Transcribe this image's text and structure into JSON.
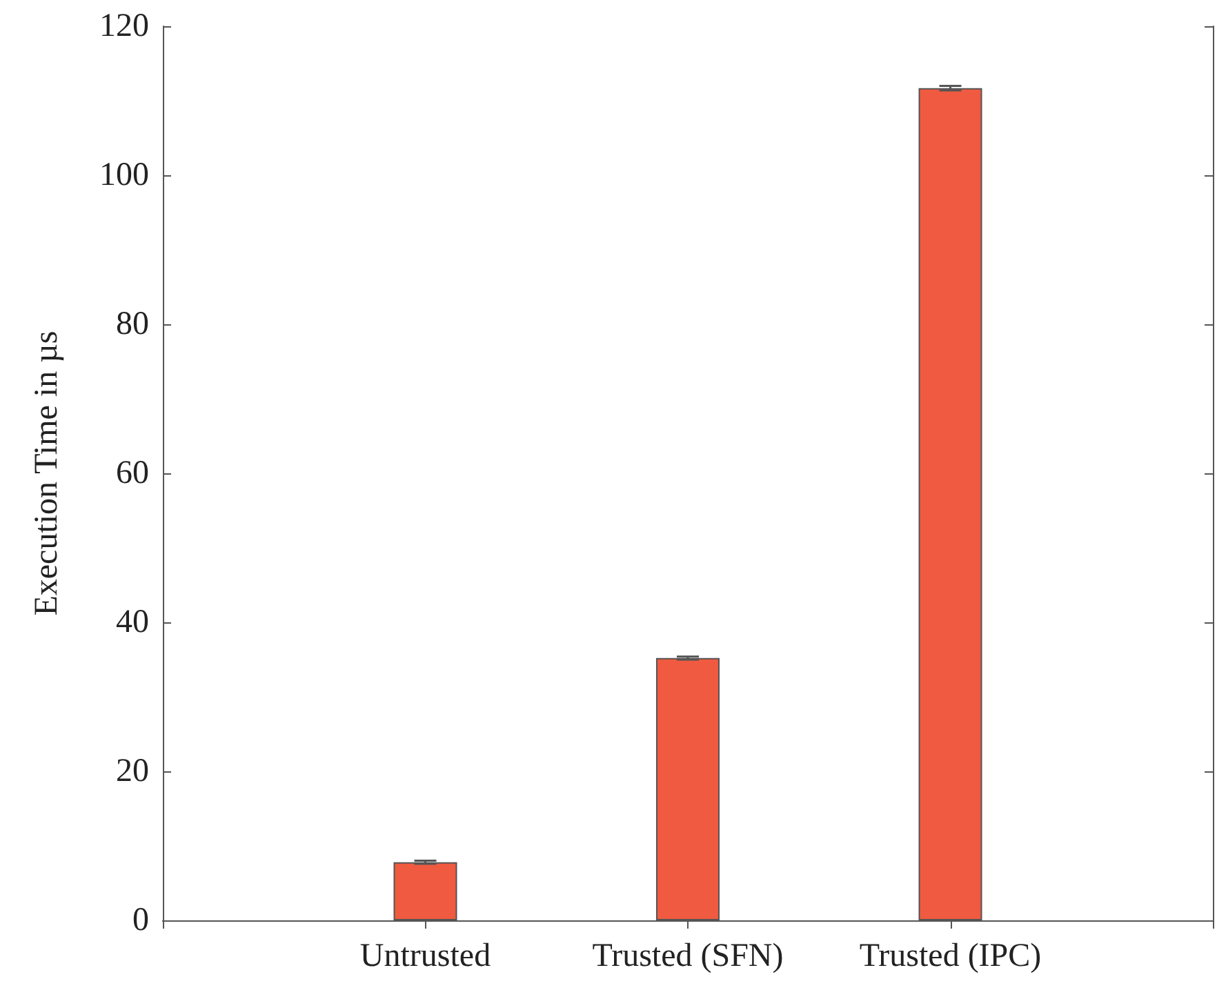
{
  "chart_data": {
    "type": "bar",
    "ylabel": "Execution Time in µs",
    "categories": [
      null,
      "Untrusted",
      "Trusted (SFN)",
      "Trusted (IPC)",
      null
    ],
    "values": [
      null,
      7.8,
      35.2,
      111.7,
      null
    ],
    "errors": [
      null,
      0.2,
      0.2,
      0.3,
      null
    ],
    "color": "#f05a40",
    "ylim": [
      0,
      120
    ],
    "yticks": [
      0,
      20,
      40,
      60,
      80,
      100,
      120
    ],
    "grid": false
  }
}
